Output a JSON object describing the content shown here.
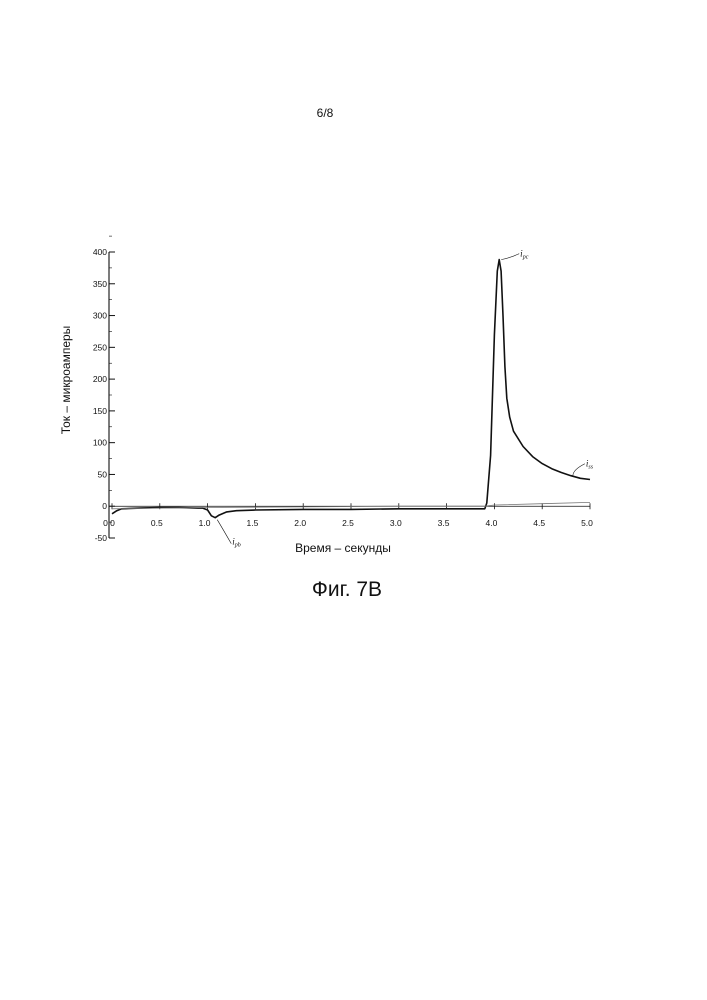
{
  "page": {
    "number": "6/8",
    "caption": "Фиг. 7B"
  },
  "chart_data": {
    "type": "line",
    "title": "",
    "xlabel": "Время – секунды",
    "ylabel": "Ток – микроамперы",
    "xlim": [
      0,
      5
    ],
    "ylim": [
      -50,
      400
    ],
    "x_ticks": [
      0,
      0.5,
      1,
      1.5,
      2,
      2.5,
      3,
      3.5,
      4,
      4.5,
      5
    ],
    "x_tick_labels": [
      "0.0",
      "0.5",
      "1.0",
      "1.5",
      "2.0",
      "2.5",
      "3.0",
      "3.5",
      "4.0",
      "4.5",
      "5.0"
    ],
    "y_ticks": [
      -50,
      0,
      50,
      100,
      150,
      200,
      250,
      300,
      350,
      400
    ],
    "y_tick_labels": [
      "-50",
      "0",
      "50",
      "100",
      "150",
      "200",
      "250",
      "300",
      "350",
      "400"
    ],
    "grid": false,
    "legend": "none",
    "series": [
      {
        "color": "#111111",
        "points": [
          [
            0.0,
            -12
          ],
          [
            0.05,
            -7
          ],
          [
            0.1,
            -4
          ],
          [
            0.3,
            -3
          ],
          [
            0.5,
            -2
          ],
          [
            0.7,
            -2
          ],
          [
            0.9,
            -3
          ],
          [
            0.95,
            -3
          ],
          [
            1.0,
            -6
          ],
          [
            1.04,
            -15
          ],
          [
            1.08,
            -18
          ],
          [
            1.12,
            -14
          ],
          [
            1.2,
            -9
          ],
          [
            1.3,
            -7
          ],
          [
            1.5,
            -6
          ],
          [
            2.0,
            -5
          ],
          [
            2.5,
            -5
          ],
          [
            3.0,
            -4
          ],
          [
            3.5,
            -4
          ],
          [
            3.85,
            -4
          ],
          [
            3.9,
            -4
          ],
          [
            3.92,
            5
          ],
          [
            3.96,
            80
          ],
          [
            4.0,
            270
          ],
          [
            4.03,
            370
          ],
          [
            4.05,
            388
          ],
          [
            4.07,
            370
          ],
          [
            4.09,
            300
          ],
          [
            4.11,
            220
          ],
          [
            4.13,
            170
          ],
          [
            4.16,
            140
          ],
          [
            4.2,
            118
          ],
          [
            4.3,
            94
          ],
          [
            4.4,
            78
          ],
          [
            4.5,
            67
          ],
          [
            4.6,
            59
          ],
          [
            4.7,
            53
          ],
          [
            4.8,
            48
          ],
          [
            4.9,
            44
          ],
          [
            5.0,
            42
          ]
        ]
      },
      {
        "color": "#777777",
        "points": [
          [
            0.0,
            -4
          ],
          [
            1.0,
            -2
          ],
          [
            2.0,
            -1
          ],
          [
            3.0,
            0
          ],
          [
            3.9,
            0
          ],
          [
            4.0,
            2
          ],
          [
            4.5,
            4
          ],
          [
            5.0,
            6
          ]
        ]
      }
    ],
    "annotations": [
      {
        "label": "i",
        "sub": "pc",
        "x": 4.05,
        "y": 388
      },
      {
        "label": "i",
        "sub": "ss",
        "x": 4.8,
        "y": 48
      },
      {
        "label": "i",
        "sub": "pb",
        "x": 1.08,
        "y": -18
      }
    ]
  }
}
